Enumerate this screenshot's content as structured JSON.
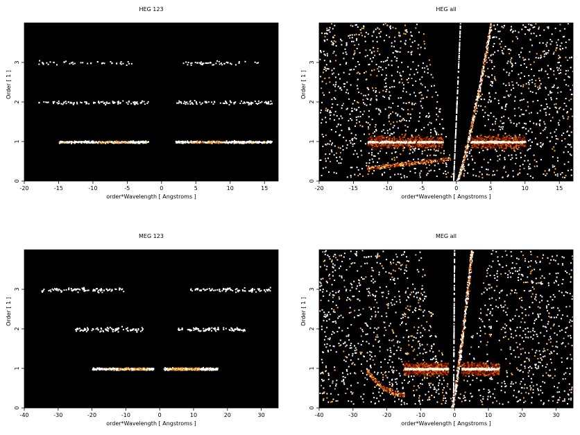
{
  "chart_data": [
    {
      "type": "heatmap",
      "title": "HEG 123",
      "xlabel": "order*Wavelength [ Angstroms ]",
      "ylabel": "Order [ 1 ]",
      "xlim": [
        -20,
        17
      ],
      "ylim": [
        0,
        4
      ],
      "xticks": [
        -20,
        -15,
        -10,
        -5,
        0,
        5,
        10,
        15
      ],
      "yticks": [
        0,
        1,
        2,
        3
      ],
      "features": [
        {
          "order": 1,
          "x_range": [
            [
              -15,
              -2
            ],
            [
              2,
              16
            ]
          ],
          "peaks": [
            -7,
            7
          ],
          "intensity": "strong"
        },
        {
          "order": 2,
          "x_range": [
            [
              -18,
              -2
            ],
            [
              2,
              16
            ]
          ],
          "intensity": "medium"
        },
        {
          "order": 3,
          "x_range": [
            [
              -18,
              -4
            ],
            [
              3,
              14
            ]
          ],
          "intensity": "weak"
        }
      ]
    },
    {
      "type": "heatmap",
      "title": "HEG all",
      "xlabel": "order*Wavelength [ Angstroms ]",
      "ylabel": "Order [ 1 ]",
      "xlim": [
        -20,
        17
      ],
      "ylim": [
        0,
        4
      ],
      "xticks": [
        -20,
        -15,
        -10,
        -5,
        0,
        5,
        10,
        15
      ],
      "yticks": [
        0,
        1,
        2,
        3
      ],
      "features": [
        {
          "order": 1,
          "x_range": [
            [
              -13,
              -2
            ],
            [
              2,
              10
            ]
          ],
          "peaks": [
            -7,
            7
          ],
          "intensity": "strong"
        },
        {
          "description": "diffuse background",
          "x_range": [
            [
              -18,
              -1
            ],
            [
              2,
              16
            ]
          ]
        },
        {
          "description": "curved streak",
          "x_range": [
            [
              -13,
              -1
            ]
          ],
          "intensity": "medium"
        },
        {
          "description": "curved streak",
          "x_range": [
            [
              0,
              5
            ]
          ],
          "intensity": "strong"
        }
      ]
    },
    {
      "type": "heatmap",
      "title": "MEG 123",
      "xlabel": "order*Wavelength [ Angstroms ]",
      "ylabel": "Order [ 1 ]",
      "xlim": [
        -40,
        35
      ],
      "ylim": [
        0,
        4
      ],
      "xticks": [
        -40,
        -30,
        -20,
        -10,
        0,
        10,
        20,
        30
      ],
      "yticks": [
        0,
        1,
        2,
        3
      ],
      "features": [
        {
          "order": 1,
          "x_range": [
            [
              -20,
              -2
            ],
            [
              1,
              17
            ]
          ],
          "peaks": [
            -8,
            7
          ],
          "intensity": "strong"
        },
        {
          "order": 2,
          "x_range": [
            [
              -25,
              -5
            ],
            [
              5,
              25
            ]
          ],
          "intensity": "medium"
        },
        {
          "order": 3,
          "x_range": [
            [
              -35,
              -10
            ],
            [
              8,
              33
            ]
          ],
          "intensity": "medium"
        }
      ]
    },
    {
      "type": "heatmap",
      "title": "MEG all",
      "xlabel": "order*Wavelength [ Angstroms ]",
      "ylabel": "Order [ 1 ]",
      "xlim": [
        -40,
        35
      ],
      "ylim": [
        0,
        4
      ],
      "xticks": [
        -40,
        -30,
        -20,
        -10,
        0,
        10,
        20,
        30
      ],
      "yticks": [
        0,
        1,
        2,
        3
      ],
      "features": [
        {
          "order": 1,
          "x_range": [
            [
              -15,
              -2
            ],
            [
              2,
              13
            ]
          ],
          "peaks": [
            -8,
            7
          ],
          "intensity": "strong"
        },
        {
          "description": "diffuse background",
          "x_range": [
            [
              -38,
              -2
            ],
            [
              2,
              34
            ]
          ]
        },
        {
          "description": "curved streak",
          "x_range": [
            [
              -26,
              -15
            ]
          ],
          "intensity": "medium"
        },
        {
          "description": "curved streak",
          "x_range": [
            [
              -1,
              5
            ]
          ],
          "intensity": "strong"
        }
      ]
    }
  ]
}
